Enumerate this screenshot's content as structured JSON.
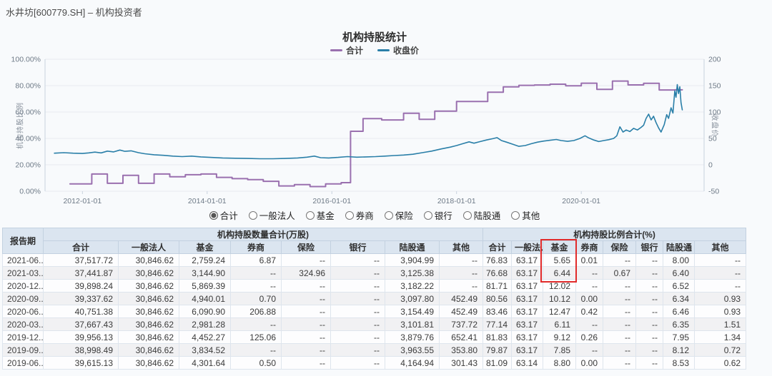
{
  "page": {
    "title": "水井坊[600779.SH] – 机构投资者"
  },
  "chart": {
    "title": "机构持股统计",
    "legend": [
      {
        "label": "合计",
        "color": "#9a70af"
      },
      {
        "label": "收盘价",
        "color": "#2a7fa8"
      }
    ],
    "left_axis_label": "机构持股比例",
    "right_axis_label": "收盘价"
  },
  "chart_data": {
    "type": "line",
    "title": "机构持股统计",
    "x_axis": {
      "tick_labels": [
        "2012-01-01",
        "2014-01-01",
        "2016-01-01",
        "2018-01-01",
        "2020-01-01"
      ],
      "tick_years": [
        2012,
        2014,
        2016,
        2018,
        2020
      ],
      "range_years": [
        2011.4,
        2021.97
      ]
    },
    "left_axis": {
      "label": "机构持股比例",
      "tick_labels": [
        "100.00%",
        "80.00%",
        "60.00%",
        "40.00%",
        "20.00%",
        "0.00%"
      ],
      "range": [
        0,
        100
      ]
    },
    "right_axis": {
      "label": "收盘价",
      "tick_labels": [
        "200",
        "150",
        "100",
        "50",
        "0",
        "-50"
      ],
      "range": [
        -50,
        200
      ]
    },
    "grid": true,
    "legend_position": "top",
    "series": [
      {
        "name": "合计",
        "axis": "left",
        "unit": "%",
        "type": "step",
        "color": "#9a70af",
        "end_year": 2021.62,
        "points": [
          [
            2011.8,
            5.5
          ],
          [
            2012.15,
            13
          ],
          [
            2012.4,
            6
          ],
          [
            2012.65,
            12
          ],
          [
            2012.9,
            6
          ],
          [
            2013.15,
            13
          ],
          [
            2013.4,
            11
          ],
          [
            2013.65,
            12.5
          ],
          [
            2013.9,
            13
          ],
          [
            2014.15,
            10.5
          ],
          [
            2014.4,
            9.5
          ],
          [
            2014.65,
            8.8
          ],
          [
            2014.9,
            7.5
          ],
          [
            2015.15,
            4
          ],
          [
            2015.4,
            5
          ],
          [
            2015.65,
            3.5
          ],
          [
            2015.9,
            5.5
          ],
          [
            2016.15,
            6.5
          ],
          [
            2016.3,
            45.4
          ],
          [
            2016.5,
            55
          ],
          [
            2016.8,
            54
          ],
          [
            2017.15,
            59
          ],
          [
            2017.4,
            54.5
          ],
          [
            2017.65,
            60.7
          ],
          [
            2018.0,
            68
          ],
          [
            2018.5,
            75
          ],
          [
            2018.75,
            79
          ],
          [
            2019.0,
            80.2
          ],
          [
            2019.25,
            80.5
          ],
          [
            2019.5,
            81.09
          ],
          [
            2019.75,
            79.87
          ],
          [
            2020.0,
            81.83
          ],
          [
            2020.25,
            77.14
          ],
          [
            2020.5,
            83.46
          ],
          [
            2020.75,
            80.56
          ],
          [
            2021.0,
            81.71
          ],
          [
            2021.25,
            76.68
          ],
          [
            2021.5,
            76.83
          ]
        ]
      },
      {
        "name": "收盘价",
        "axis": "right",
        "unit": "元",
        "type": "line",
        "color": "#2a7fa8",
        "points": [
          [
            2011.55,
            22
          ],
          [
            2011.7,
            23
          ],
          [
            2011.85,
            22
          ],
          [
            2012.0,
            21.5
          ],
          [
            2012.1,
            22.5
          ],
          [
            2012.2,
            24
          ],
          [
            2012.3,
            22.5
          ],
          [
            2012.4,
            26
          ],
          [
            2012.5,
            24.5
          ],
          [
            2012.6,
            28
          ],
          [
            2012.68,
            25.5
          ],
          [
            2012.78,
            26.5
          ],
          [
            2012.9,
            23
          ],
          [
            2013.0,
            21
          ],
          [
            2013.15,
            19
          ],
          [
            2013.3,
            18
          ],
          [
            2013.45,
            16.5
          ],
          [
            2013.6,
            15.5
          ],
          [
            2013.75,
            16.5
          ],
          [
            2013.9,
            15
          ],
          [
            2014.05,
            14
          ],
          [
            2014.25,
            13
          ],
          [
            2014.45,
            12.5
          ],
          [
            2014.65,
            12
          ],
          [
            2014.85,
            11.5
          ],
          [
            2015.05,
            11.5
          ],
          [
            2015.25,
            12
          ],
          [
            2015.45,
            13
          ],
          [
            2015.6,
            14.5
          ],
          [
            2015.72,
            16.5
          ],
          [
            2015.82,
            13.5
          ],
          [
            2015.95,
            13
          ],
          [
            2016.1,
            14
          ],
          [
            2016.25,
            15.5
          ],
          [
            2016.4,
            14.5
          ],
          [
            2016.55,
            15
          ],
          [
            2016.7,
            15.5
          ],
          [
            2016.85,
            16.5
          ],
          [
            2017.0,
            17.5
          ],
          [
            2017.15,
            18.5
          ],
          [
            2017.3,
            20
          ],
          [
            2017.45,
            23
          ],
          [
            2017.6,
            26
          ],
          [
            2017.75,
            30
          ],
          [
            2017.9,
            33.5
          ],
          [
            2018.0,
            36.5
          ],
          [
            2018.1,
            40
          ],
          [
            2018.2,
            43.5
          ],
          [
            2018.28,
            41
          ],
          [
            2018.38,
            44
          ],
          [
            2018.48,
            47
          ],
          [
            2018.58,
            49.5
          ],
          [
            2018.65,
            51.5
          ],
          [
            2018.72,
            46
          ],
          [
            2018.8,
            43
          ],
          [
            2018.9,
            39
          ],
          [
            2019.0,
            35
          ],
          [
            2019.1,
            36.5
          ],
          [
            2019.2,
            40
          ],
          [
            2019.3,
            43
          ],
          [
            2019.4,
            45
          ],
          [
            2019.5,
            46.5
          ],
          [
            2019.6,
            48
          ],
          [
            2019.68,
            46
          ],
          [
            2019.78,
            44.5
          ],
          [
            2019.88,
            46
          ],
          [
            2019.98,
            50
          ],
          [
            2020.06,
            55
          ],
          [
            2020.12,
            51
          ],
          [
            2020.2,
            47
          ],
          [
            2020.28,
            44
          ],
          [
            2020.36,
            46
          ],
          [
            2020.44,
            47.5
          ],
          [
            2020.52,
            50
          ],
          [
            2020.57,
            55
          ],
          [
            2020.62,
            72
          ],
          [
            2020.67,
            62
          ],
          [
            2020.72,
            66
          ],
          [
            2020.78,
            63
          ],
          [
            2020.84,
            69
          ],
          [
            2020.9,
            66
          ],
          [
            2020.96,
            71
          ],
          [
            2021.0,
            75
          ],
          [
            2021.04,
            88
          ],
          [
            2021.08,
            96
          ],
          [
            2021.12,
            85
          ],
          [
            2021.16,
            92
          ],
          [
            2021.2,
            80
          ],
          [
            2021.24,
            70
          ],
          [
            2021.28,
            62
          ],
          [
            2021.33,
            76
          ],
          [
            2021.37,
            95
          ],
          [
            2021.4,
            88
          ],
          [
            2021.44,
            108
          ],
          [
            2021.47,
            98
          ],
          [
            2021.5,
            140
          ],
          [
            2021.52,
            128
          ],
          [
            2021.54,
            152
          ],
          [
            2021.56,
            135
          ],
          [
            2021.58,
            148
          ],
          [
            2021.6,
            118
          ],
          [
            2021.62,
            104
          ]
        ]
      }
    ]
  },
  "filters": {
    "options": [
      "合计",
      "一般法人",
      "基金",
      "券商",
      "保险",
      "银行",
      "陆股通",
      "其他"
    ],
    "selected": "合计"
  },
  "table": {
    "corner_header": "报告期",
    "groups": [
      {
        "label": "机构持股数量合计(万股)"
      },
      {
        "label": "机构持股比例合计(%)"
      }
    ],
    "sub_headers": [
      "合计",
      "一般法人",
      "基金",
      "券商",
      "保险",
      "银行",
      "陆股通",
      "其他"
    ],
    "rows": [
      [
        "2021-06...",
        "37,517.72",
        "30,846.62",
        "2,759.24",
        "6.87",
        "--",
        "--",
        "3,904.99",
        "--",
        "76.83",
        "63.17",
        "5.65",
        "0.01",
        "--",
        "--",
        "8.00",
        "--"
      ],
      [
        "2021-03...",
        "37,441.87",
        "30,846.62",
        "3,144.90",
        "--",
        "324.96",
        "--",
        "3,125.38",
        "--",
        "76.68",
        "63.17",
        "6.44",
        "--",
        "0.67",
        "--",
        "6.40",
        "--"
      ],
      [
        "2020-12...",
        "39,898.24",
        "30,846.62",
        "5,869.39",
        "--",
        "--",
        "--",
        "3,182.22",
        "--",
        "81.71",
        "63.17",
        "12.02",
        "--",
        "--",
        "--",
        "6.52",
        "--"
      ],
      [
        "2020-09...",
        "39,337.62",
        "30,846.62",
        "4,940.01",
        "0.70",
        "--",
        "--",
        "3,097.80",
        "452.49",
        "80.56",
        "63.17",
        "10.12",
        "0.00",
        "--",
        "--",
        "6.34",
        "0.93"
      ],
      [
        "2020-06...",
        "40,751.38",
        "30,846.62",
        "6,090.90",
        "206.88",
        "--",
        "--",
        "3,154.49",
        "452.49",
        "83.46",
        "63.17",
        "12.47",
        "0.42",
        "--",
        "--",
        "6.46",
        "0.93"
      ],
      [
        "2020-03...",
        "37,667.43",
        "30,846.62",
        "2,981.28",
        "--",
        "--",
        "--",
        "3,101.81",
        "737.72",
        "77.14",
        "63.17",
        "6.11",
        "--",
        "--",
        "--",
        "6.35",
        "1.51"
      ],
      [
        "2019-12...",
        "39,956.13",
        "30,846.62",
        "4,452.27",
        "125.06",
        "--",
        "--",
        "3,879.76",
        "652.41",
        "81.83",
        "63.17",
        "9.12",
        "0.26",
        "--",
        "--",
        "7.95",
        "1.34"
      ],
      [
        "2019-09...",
        "38,998.49",
        "30,846.62",
        "3,834.52",
        "--",
        "--",
        "--",
        "3,963.55",
        "353.80",
        "79.87",
        "63.17",
        "7.85",
        "--",
        "--",
        "--",
        "8.12",
        "0.72"
      ],
      [
        "2019-06...",
        "39,615.13",
        "30,846.62",
        "4,301.64",
        "0.50",
        "--",
        "--",
        "4,164.94",
        "301.43",
        "81.09",
        "63.14",
        "8.80",
        "0.00",
        "--",
        "--",
        "8.53",
        "0.62"
      ]
    ],
    "highlight": {
      "group": "机构持股比例合计(%)",
      "column": "基金",
      "rows": [
        "2021-06...",
        "2021-03..."
      ],
      "color": "#e12b2b"
    }
  }
}
